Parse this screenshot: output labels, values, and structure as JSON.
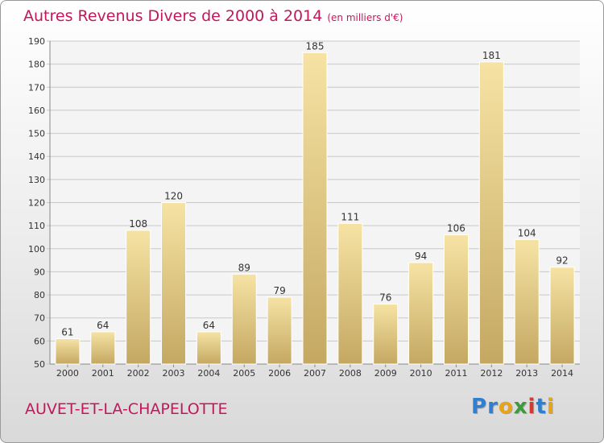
{
  "header": {
    "title": "Autres Revenus Divers de 2000 à 2014",
    "unit": "(en milliers d'€)"
  },
  "footer": {
    "commune": "AUVET-ET-LA-CHAPELOTTE",
    "logo": "Proxiti",
    "logo_colors": [
      "#2e7fd1",
      "#2e7fd1",
      "#e8a418",
      "#3c9b3c",
      "#d63a2e",
      "#2e7fd1",
      "#e8a418"
    ]
  },
  "chart_data": {
    "type": "bar",
    "categories": [
      "2000",
      "2001",
      "2002",
      "2003",
      "2004",
      "2005",
      "2006",
      "2007",
      "2008",
      "2009",
      "2010",
      "2011",
      "2012",
      "2013",
      "2014"
    ],
    "values": [
      61,
      64,
      108,
      120,
      64,
      89,
      79,
      185,
      111,
      76,
      94,
      106,
      181,
      104,
      92
    ],
    "ylim": [
      50,
      190
    ],
    "yticks": [
      50,
      60,
      70,
      80,
      90,
      100,
      110,
      120,
      130,
      140,
      150,
      160,
      170,
      180,
      190
    ],
    "grid": true,
    "colors": {
      "bar_top": "#f6e3a4",
      "bar_bottom": "#c4a862",
      "grid": "#c8c8c8",
      "text": "#333333"
    }
  }
}
